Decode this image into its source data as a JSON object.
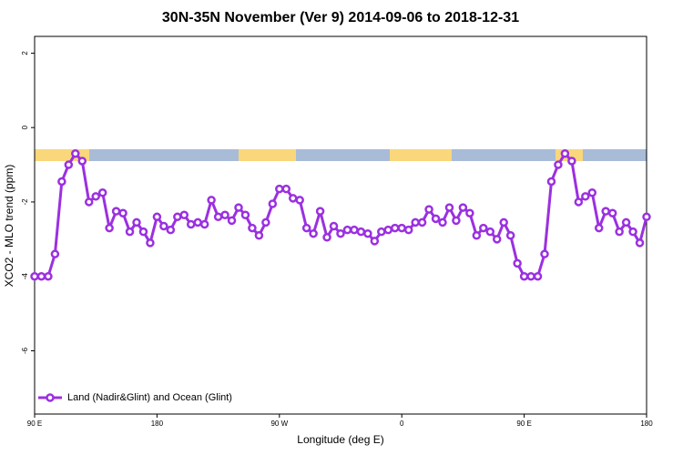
{
  "chart_data": {
    "type": "line",
    "title": "30N-35N November (Ver 9)   2014-09-06 to 2018-12-31",
    "x_label": "Longitude (deg E)",
    "y_label": "XCO2 - MLO trend (ppm)",
    "x": [
      90,
      95,
      100,
      105,
      110,
      115,
      120,
      125,
      130,
      135,
      140,
      145,
      150,
      155,
      160,
      165,
      170,
      175,
      180,
      185,
      190,
      195,
      200,
      205,
      210,
      215,
      220,
      225,
      230,
      235,
      240,
      245,
      250,
      255,
      260,
      265,
      270,
      275,
      280,
      285,
      290,
      295,
      300,
      305,
      310,
      315,
      320,
      325,
      330,
      335,
      340,
      345,
      350,
      355,
      360,
      365,
      370,
      375,
      380,
      385,
      390,
      395,
      400,
      405,
      410,
      415,
      420,
      425,
      430,
      435,
      440,
      445,
      450,
      455,
      460,
      465,
      470,
      475,
      480,
      485,
      490,
      495,
      500,
      505,
      510,
      515,
      520,
      525,
      530,
      535,
      540
    ],
    "series": [
      {
        "name": "Land (Nadir&Glint) and Ocean (Glint)",
        "color": "#9b30e0",
        "values": [
          -4.0,
          -4.0,
          -4.0,
          -3.4,
          -1.45,
          -1.0,
          -0.7,
          -0.9,
          -2.0,
          -1.85,
          -1.75,
          -2.7,
          -2.25,
          -2.3,
          -2.8,
          -2.55,
          -2.8,
          -3.1,
          -2.4,
          -2.65,
          -2.75,
          -2.4,
          -2.35,
          -2.6,
          -2.55,
          -2.6,
          -1.95,
          -2.4,
          -2.35,
          -2.5,
          -2.15,
          -2.35,
          -2.7,
          -2.9,
          -2.55,
          -2.05,
          -1.65,
          -1.65,
          -1.9,
          -1.95,
          -2.7,
          -2.85,
          -2.25,
          -2.95,
          -2.65,
          -2.85,
          -2.75,
          -2.75,
          -2.8,
          -2.85,
          -3.05,
          -2.8,
          -2.75,
          -2.7,
          -2.7,
          -2.75,
          -2.55,
          -2.55,
          -2.2,
          -2.45,
          -2.55,
          -2.15,
          -2.5,
          -2.15,
          -2.3,
          -2.9,
          -2.7,
          -2.8,
          -3.0,
          -2.55,
          -2.9,
          -3.65,
          -4.0,
          -4.0,
          -4.0,
          -3.4,
          -1.45,
          -1.0,
          -0.7,
          -0.9,
          -2.0,
          -1.85,
          -1.75,
          -2.7,
          -2.25,
          -2.3,
          -2.8,
          -2.55,
          -2.8,
          -3.1,
          -2.4
        ]
      }
    ],
    "xlim": [
      90,
      540
    ],
    "xticks": [
      {
        "value": 90,
        "label": "90 E"
      },
      180,
      {
        "value": 270,
        "label": "90 W"
      },
      {
        "value": 360,
        "label": "0"
      },
      {
        "value": 450,
        "label": "90 E"
      },
      {
        "value": 540,
        "label": "180"
      }
    ],
    "ylim": [
      -7.7,
      2.45
    ],
    "yticks": [
      -6,
      -4,
      -2,
      0,
      2
    ],
    "legend": "lower left"
  }
}
